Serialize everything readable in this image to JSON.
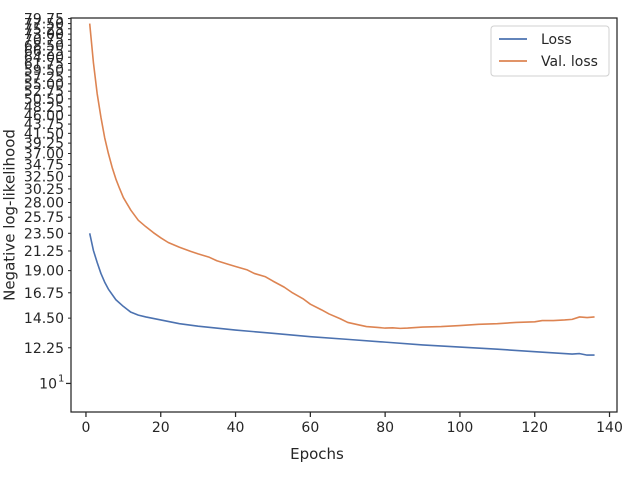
{
  "chart_data": {
    "type": "line",
    "title": "",
    "xlabel": "Epochs",
    "ylabel": "Negative log-likelihood",
    "yscale": "log",
    "xlim": [
      -4,
      142
    ],
    "ylim": [
      8.5,
      80
    ],
    "grid": false,
    "legend_position": "top-right",
    "x_ticks": [
      0,
      20,
      40,
      60,
      80,
      100,
      120,
      140
    ],
    "x_tick_labels": [
      "0",
      "20",
      "40",
      "60",
      "80",
      "100",
      "120",
      "140"
    ],
    "y_ticks": [
      12.25,
      14.5,
      16.75,
      19.0,
      21.25,
      23.5,
      25.75,
      28.0,
      30.25,
      32.5,
      34.75,
      37.0,
      39.25,
      41.5,
      43.75,
      46.0,
      48.25,
      50.5,
      52.75,
      55.0,
      57.25,
      59.5,
      61.75,
      64.0,
      66.25,
      68.5,
      70.75,
      73.0,
      75.25,
      77.5,
      79.75
    ],
    "y_tick_labels": [
      "12.25",
      "14.50",
      "16.75",
      "19.00",
      "21.25",
      "23.50",
      "25.75",
      "28.00",
      "30.25",
      "32.50",
      "34.75",
      "37.00",
      "39.25",
      "41.50",
      "43.75",
      "46.00",
      "48.25",
      "50.50",
      "52.75",
      "55.00",
      "57.25",
      "59.50",
      "61.75",
      "64.00",
      "66.25",
      "68.50",
      "70.75",
      "73.00",
      "75.25",
      "77.50",
      "79.75"
    ],
    "y_major_tick": {
      "value": 10,
      "label_base": "10",
      "label_exp": "1"
    },
    "series": [
      {
        "name": "Loss",
        "color": "#4c72b0",
        "x": [
          1,
          2,
          3,
          4,
          5,
          6,
          8,
          10,
          12,
          14,
          16,
          20,
          25,
          30,
          40,
          50,
          60,
          70,
          80,
          90,
          100,
          110,
          120,
          130,
          132,
          134,
          136
        ],
        "y": [
          23.5,
          21.3,
          19.9,
          18.7,
          17.8,
          17.1,
          16.1,
          15.5,
          15.0,
          14.75,
          14.6,
          14.35,
          14.05,
          13.85,
          13.55,
          13.3,
          13.05,
          12.85,
          12.65,
          12.45,
          12.3,
          12.15,
          11.98,
          11.82,
          11.85,
          11.75,
          11.75
        ]
      },
      {
        "name": "Val. loss",
        "color": "#dd8452",
        "x": [
          1,
          2,
          3,
          4,
          5,
          6,
          7,
          8,
          9,
          10,
          12,
          14,
          16,
          18,
          20,
          22,
          25,
          28,
          30,
          33,
          35,
          38,
          40,
          43,
          45,
          48,
          50,
          53,
          55,
          58,
          60,
          63,
          65,
          68,
          70,
          73,
          75,
          78,
          80,
          82,
          84,
          86,
          88,
          90,
          95,
          100,
          105,
          110,
          115,
          120,
          122,
          125,
          128,
          130,
          132,
          134,
          136
        ],
        "y": [
          77.5,
          62.0,
          52.0,
          45.5,
          40.5,
          37.0,
          34.2,
          32.0,
          30.3,
          28.8,
          26.8,
          25.3,
          24.4,
          23.6,
          22.9,
          22.3,
          21.7,
          21.2,
          20.9,
          20.5,
          20.1,
          19.7,
          19.45,
          19.1,
          18.7,
          18.35,
          17.9,
          17.3,
          16.8,
          16.2,
          15.7,
          15.2,
          14.85,
          14.45,
          14.15,
          13.95,
          13.82,
          13.75,
          13.7,
          13.72,
          13.68,
          13.7,
          13.74,
          13.78,
          13.82,
          13.9,
          14.0,
          14.05,
          14.15,
          14.2,
          14.3,
          14.3,
          14.35,
          14.4,
          14.6,
          14.55,
          14.6
        ]
      }
    ]
  }
}
